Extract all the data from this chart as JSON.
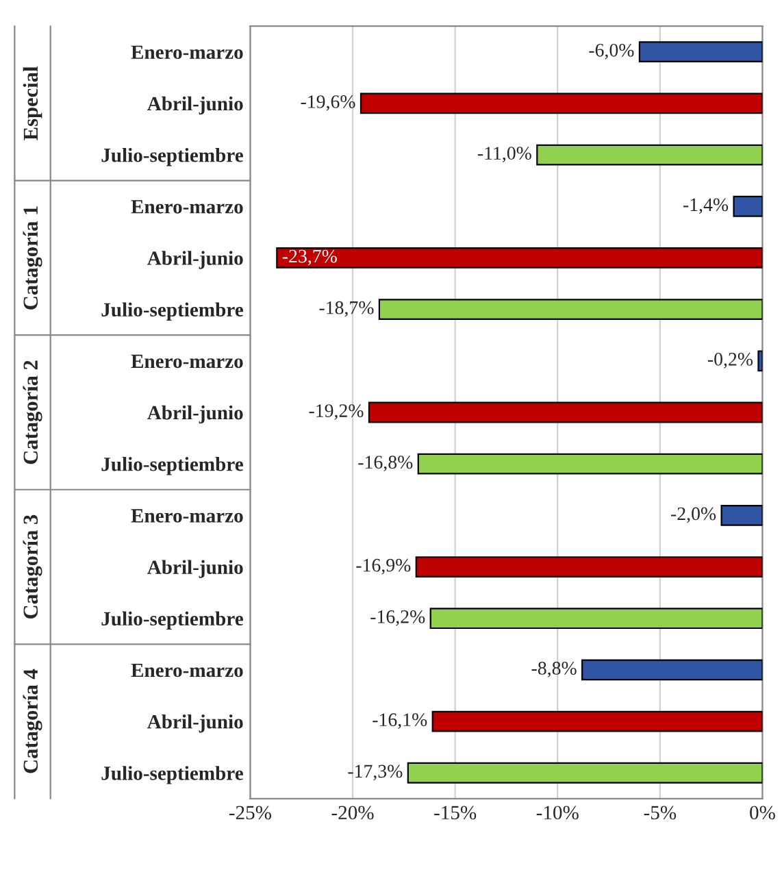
{
  "chart_data": {
    "type": "bar",
    "orientation": "horizontal",
    "categories": [
      "Enero-marzo",
      "Abril-junio",
      "Julio-septiembre",
      "Enero-marzo",
      "Abril-junio",
      "Julio-septiembre",
      "Enero-marzo",
      "Abril-junio",
      "Julio-septiembre",
      "Enero-marzo",
      "Abril-junio",
      "Julio-septiembre",
      "Enero-marzo",
      "Abril-junio",
      "Julio-septiembre"
    ],
    "values": [
      -6.0,
      -19.6,
      -11.0,
      -1.4,
      -23.7,
      -18.7,
      -0.2,
      -19.2,
      -16.8,
      -2.0,
      -16.9,
      -16.2,
      -8.8,
      -16.1,
      -17.3
    ],
    "value_labels": [
      "-6,0%",
      "-19,6%",
      "-11,0%",
      "-1,4%",
      "-23,7%",
      "-18,7%",
      "-0,2%",
      "-19,2%",
      "-16,8%",
      "-2,0%",
      "-16,9%",
      "-16,2%",
      "-8,8%",
      "-16,1%",
      "-17,3%"
    ],
    "colors": [
      "#2f55a4",
      "#c00000",
      "#92d050",
      "#2f55a4",
      "#c00000",
      "#92d050",
      "#2f55a4",
      "#c00000",
      "#92d050",
      "#2f55a4",
      "#c00000",
      "#92d050",
      "#2f55a4",
      "#c00000",
      "#92d050"
    ],
    "annotations": [
      "Especial",
      "Catagoría 1",
      "Catagoría 2",
      "Catagoría 3",
      "Catagoría 4"
    ],
    "xlim": [
      -25,
      0
    ],
    "xticks": [
      {
        "value": -25,
        "label": "-25%"
      },
      {
        "value": -20,
        "label": "-20%"
      },
      {
        "value": -15,
        "label": "-15%"
      },
      {
        "value": -10,
        "label": "-10%"
      },
      {
        "value": -5,
        "label": "-5%"
      },
      {
        "value": 0,
        "label": "0%"
      }
    ],
    "grid": "x",
    "legend": false
  }
}
